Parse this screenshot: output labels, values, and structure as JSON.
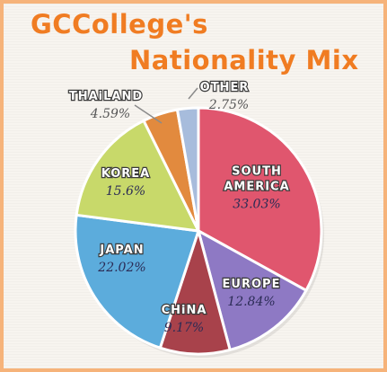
{
  "chart_data": {
    "type": "pie",
    "title_line1": "GCCollege's",
    "title_line2": "Nationality Mix",
    "slices": [
      {
        "label": "SOUTH AMERICA",
        "label_lines": [
          "SOUTH",
          "AMERICA"
        ],
        "value": 33.03,
        "value_text": "33.03%",
        "color": "#e0566e"
      },
      {
        "label": "EUROPE",
        "label_lines": [
          "EUROPE"
        ],
        "value": 12.84,
        "value_text": "12.84%",
        "color": "#8e79c4"
      },
      {
        "label": "CHiNA",
        "label_lines": [
          "CHiNA"
        ],
        "value": 9.17,
        "value_text": "9.17%",
        "color": "#a8424b"
      },
      {
        "label": "JAPAN",
        "label_lines": [
          "JAPAN"
        ],
        "value": 22.02,
        "value_text": "22.02%",
        "color": "#5cacdc"
      },
      {
        "label": "KOREA",
        "label_lines": [
          "KOREA"
        ],
        "value": 15.6,
        "value_text": "15.6%",
        "color": "#c8d96a"
      },
      {
        "label": "THAiLAND",
        "label_lines": [
          "THAiLAND"
        ],
        "value": 4.59,
        "value_text": "4.59%",
        "color": "#e28a3e"
      },
      {
        "label": "OTHER",
        "label_lines": [
          "OTHER"
        ],
        "value": 2.75,
        "value_text": "2.75%",
        "color": "#a7bcdc"
      }
    ]
  }
}
